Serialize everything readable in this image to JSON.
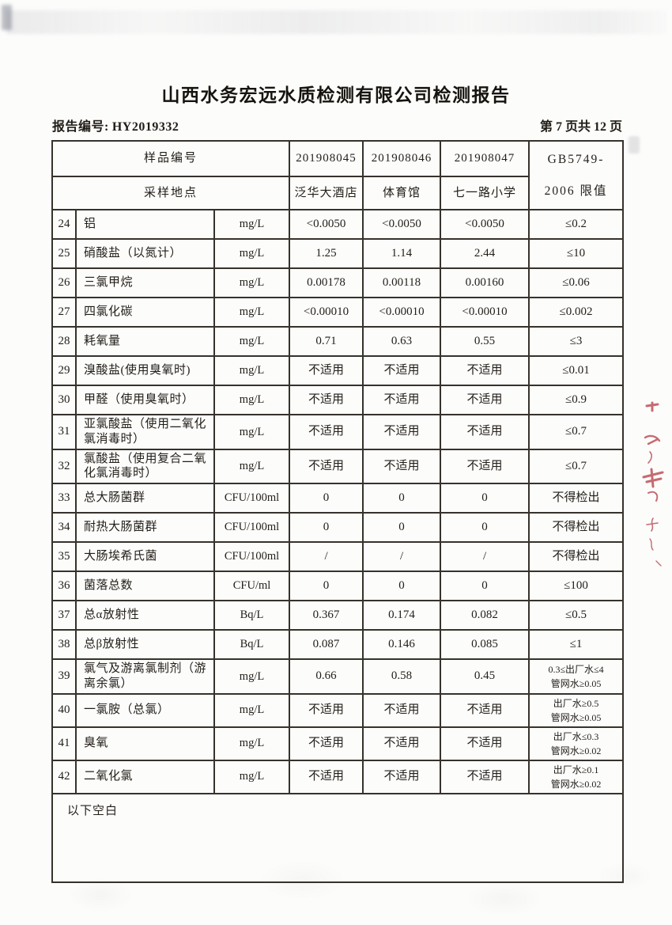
{
  "page": {
    "title": "山西水务宏远水质检测有限公司检测报告",
    "report_no_label": "报告编号:",
    "report_no": "HY2019332",
    "page_indicator": "第 7 页共 12 页"
  },
  "table": {
    "header": {
      "sample_id_label": "样品编号",
      "sample_location_label": "采样地点",
      "sample_ids": [
        "201908045",
        "201908046",
        "201908047"
      ],
      "locations": [
        "泛华大酒店",
        "体育馆",
        "七一路小学"
      ],
      "limit_header": "GB5749-\n2006 限值"
    },
    "rows": [
      {
        "no": "24",
        "param": "铝",
        "unit": "mg/L",
        "values": [
          "<0.0050",
          "<0.0050",
          "<0.0050"
        ],
        "limit": "≤0.2"
      },
      {
        "no": "25",
        "param": "硝酸盐（以氮计）",
        "unit": "mg/L",
        "values": [
          "1.25",
          "1.14",
          "2.44"
        ],
        "limit": "≤10"
      },
      {
        "no": "26",
        "param": "三氯甲烷",
        "unit": "mg/L",
        "values": [
          "0.00178",
          "0.00118",
          "0.00160"
        ],
        "limit": "≤0.06"
      },
      {
        "no": "27",
        "param": "四氯化碳",
        "unit": "mg/L",
        "values": [
          "<0.00010",
          "<0.00010",
          "<0.00010"
        ],
        "limit": "≤0.002"
      },
      {
        "no": "28",
        "param": "耗氧量",
        "unit": "mg/L",
        "values": [
          "0.71",
          "0.63",
          "0.55"
        ],
        "limit": "≤3"
      },
      {
        "no": "29",
        "param": "溴酸盐(使用臭氧时)",
        "unit": "mg/L",
        "values": [
          "不适用",
          "不适用",
          "不适用"
        ],
        "limit": "≤0.01"
      },
      {
        "no": "30",
        "param": "甲醛（使用臭氧时）",
        "unit": "mg/L",
        "values": [
          "不适用",
          "不适用",
          "不适用"
        ],
        "limit": "≤0.9"
      },
      {
        "no": "31",
        "param": "亚氯酸盐（使用二氧化氯消毒时）",
        "unit": "mg/L",
        "values": [
          "不适用",
          "不适用",
          "不适用"
        ],
        "limit": "≤0.7"
      },
      {
        "no": "32",
        "param": "氯酸盐（使用复合二氧化氯消毒时）",
        "unit": "mg/L",
        "values": [
          "不适用",
          "不适用",
          "不适用"
        ],
        "limit": "≤0.7"
      },
      {
        "no": "33",
        "param": "总大肠菌群",
        "unit": "CFU/100ml",
        "values": [
          "0",
          "0",
          "0"
        ],
        "limit": "不得检出"
      },
      {
        "no": "34",
        "param": "耐热大肠菌群",
        "unit": "CFU/100ml",
        "values": [
          "0",
          "0",
          "0"
        ],
        "limit": "不得检出"
      },
      {
        "no": "35",
        "param": "大肠埃希氏菌",
        "unit": "CFU/100ml",
        "values": [
          "/",
          "/",
          "/"
        ],
        "limit": "不得检出"
      },
      {
        "no": "36",
        "param": "菌落总数",
        "unit": "CFU/ml",
        "values": [
          "0",
          "0",
          "0"
        ],
        "limit": "≤100"
      },
      {
        "no": "37",
        "param": "总α放射性",
        "unit": "Bq/L",
        "values": [
          "0.367",
          "0.174",
          "0.082"
        ],
        "limit": "≤0.5"
      },
      {
        "no": "38",
        "param": "总β放射性",
        "unit": "Bq/L",
        "values": [
          "0.087",
          "0.146",
          "0.085"
        ],
        "limit": "≤1"
      },
      {
        "no": "39",
        "param": "氯气及游离氯制剂（游离余氯）",
        "unit": "mg/L",
        "values": [
          "0.66",
          "0.58",
          "0.45"
        ],
        "limit": "0.3≤出厂水≤4\n管网水≥0.05"
      },
      {
        "no": "40",
        "param": "一氯胺（总氯）",
        "unit": "mg/L",
        "values": [
          "不适用",
          "不适用",
          "不适用"
        ],
        "limit": "出厂水≥0.5\n管网水≥0.05"
      },
      {
        "no": "41",
        "param": "臭氧",
        "unit": "mg/L",
        "values": [
          "不适用",
          "不适用",
          "不适用"
        ],
        "limit": "出厂水≤0.3\n管网水≥0.02"
      },
      {
        "no": "42",
        "param": "二氧化氯",
        "unit": "mg/L",
        "values": [
          "不适用",
          "不适用",
          "不适用"
        ],
        "limit": "出厂水≥0.1\n管网水≥0.02"
      }
    ],
    "footer_note": "以下空白"
  },
  "colors": {
    "paper": "#fcfcfb",
    "ink": "#201d1a",
    "table_border": "#36322c",
    "stamp_red": "#b9474e"
  }
}
